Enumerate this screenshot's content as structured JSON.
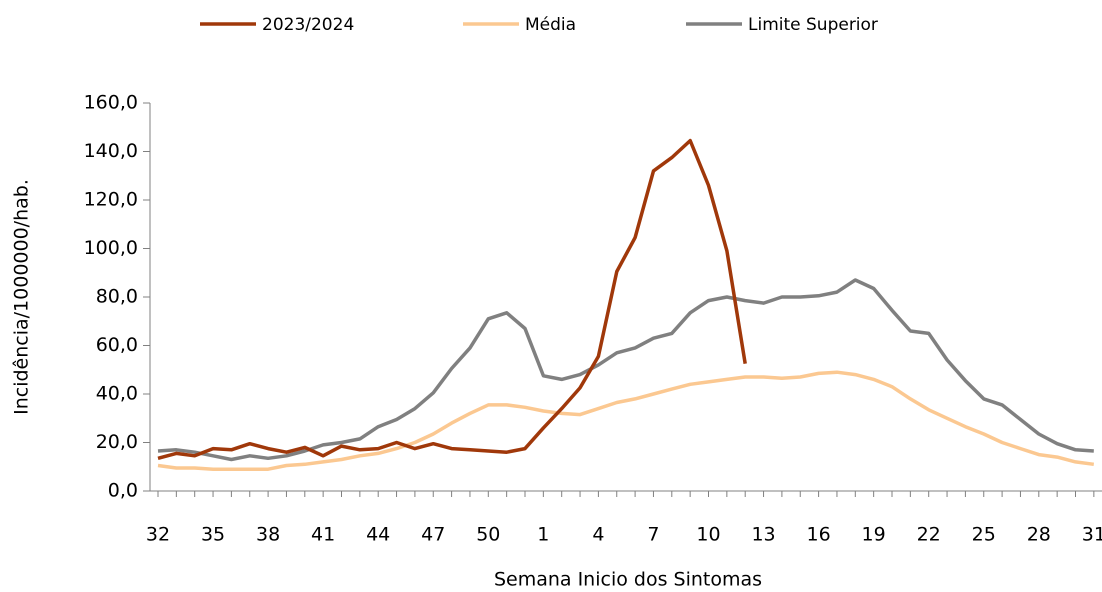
{
  "chart_data": {
    "type": "line",
    "x_label": "Semana Inicio dos Sintomas",
    "y_label": "Incidência/1000000/hab.",
    "categories": [
      "32",
      null,
      null,
      "35",
      null,
      null,
      "38",
      null,
      null,
      "41",
      null,
      null,
      "44",
      null,
      null,
      "47",
      null,
      null,
      "50",
      null,
      null,
      "1",
      null,
      null,
      "4",
      null,
      null,
      "7",
      null,
      null,
      "10",
      null,
      null,
      "13",
      null,
      null,
      "16",
      null,
      null,
      "19",
      null,
      null,
      "22",
      null,
      null,
      "25",
      null,
      null,
      "28",
      null,
      null,
      "31"
    ],
    "ylim": [
      0,
      160
    ],
    "yticks": [
      {
        "value": 0,
        "label": "0,0"
      },
      {
        "value": 20,
        "label": "20,0"
      },
      {
        "value": 40,
        "label": "40,0"
      },
      {
        "value": 60,
        "label": "60,0"
      },
      {
        "value": 80,
        "label": "80,0"
      },
      {
        "value": 100,
        "label": "100,0"
      },
      {
        "value": 120,
        "label": "120,0"
      },
      {
        "value": 140,
        "label": "140,0"
      },
      {
        "value": 160,
        "label": "160,0"
      }
    ],
    "legend": "top",
    "series": [
      {
        "name": "2023/2024",
        "color": "#a0380a",
        "values": [
          13.5,
          15.5,
          14.5,
          17.5,
          17,
          19.5,
          17.5,
          16,
          18,
          14.5,
          18.5,
          17,
          17.5,
          20,
          17.5,
          19.5,
          17.5,
          17,
          16.5,
          16,
          17.5,
          26,
          34,
          42.5,
          55.5,
          90.5,
          104.5,
          132,
          137.5,
          144.5,
          126,
          99,
          52.5,
          null,
          null,
          null,
          null,
          null,
          null,
          null,
          null,
          null,
          null,
          null,
          null,
          null,
          null,
          null,
          null,
          null,
          null,
          null
        ]
      },
      {
        "name": "Média",
        "color": "#fbc891",
        "values": [
          10.5,
          9.5,
          9.5,
          9,
          9,
          9,
          9,
          10.5,
          11,
          12,
          13,
          14.5,
          15.5,
          17.5,
          20,
          23.5,
          28,
          32,
          35.5,
          35.5,
          34.5,
          33,
          32,
          31.5,
          34,
          36.5,
          38,
          40,
          42,
          44,
          45,
          46,
          47,
          47,
          46.5,
          47,
          48.5,
          49,
          48,
          46,
          43,
          38,
          33.5,
          30,
          26.5,
          23.5,
          20,
          17.5,
          15,
          14,
          12,
          11
        ]
      },
      {
        "name": "Limite Superior",
        "color": "#808080",
        "values": [
          16.5,
          17,
          16,
          14.5,
          13,
          14.5,
          13.5,
          14.5,
          16.5,
          19,
          20,
          21.5,
          26.5,
          29.5,
          34,
          40.5,
          50.5,
          59,
          71,
          73.5,
          67,
          47.5,
          46,
          48,
          52,
          57,
          59,
          63,
          65,
          73.5,
          78.5,
          80,
          78.5,
          77.5,
          80,
          80,
          80.5,
          82,
          87,
          83.5,
          74.5,
          66,
          65,
          54,
          45.5,
          38,
          35.5,
          29.5,
          23.5,
          19.5,
          17,
          16.5
        ]
      }
    ]
  }
}
